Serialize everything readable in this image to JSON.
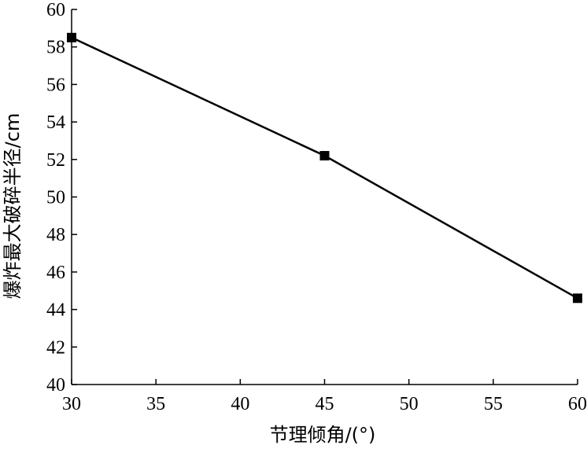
{
  "chart_data": {
    "type": "line",
    "xlabel": "节理倾角/(°)",
    "ylabel": "爆炸最大破碎半径/cm",
    "xlim": [
      30,
      60
    ],
    "ylim": [
      40,
      60
    ],
    "xticks": [
      30,
      35,
      40,
      45,
      50,
      55,
      60
    ],
    "yticks": [
      40,
      42,
      44,
      46,
      48,
      50,
      52,
      54,
      56,
      58,
      60
    ],
    "grid": false,
    "series": [
      {
        "x": [
          30,
          45,
          60
        ],
        "y": [
          58.5,
          52.2,
          44.6
        ],
        "color": "#000000",
        "marker": "square"
      }
    ]
  }
}
